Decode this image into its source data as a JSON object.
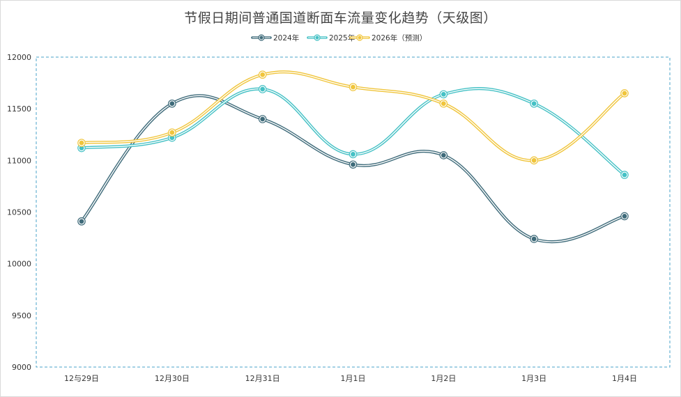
{
  "chart_data": {
    "type": "line",
    "title": "节假日期间普通国道断面车流量变化趋势（天级图）",
    "xlabel": "",
    "ylabel": "",
    "categories": [
      "12与29日",
      "12月30日",
      "12月31日",
      "1月1日",
      "1月2日",
      "1月3日",
      "1月4日"
    ],
    "ylim": [
      9000,
      12000
    ],
    "yticks": [
      9000,
      9500,
      10000,
      10500,
      11000,
      11500,
      12000
    ],
    "smooth": true,
    "grid": false,
    "legend_position": "top-center",
    "series": [
      {
        "name": "2024年",
        "color": "#3f6b7a",
        "values": [
          10410,
          11550,
          11400,
          10960,
          11050,
          10240,
          10460
        ]
      },
      {
        "name": "2025年",
        "color": "#45c1c5",
        "values": [
          11120,
          11220,
          11690,
          11060,
          11640,
          11550,
          10860
        ]
      },
      {
        "name": "2026年（预测）",
        "color": "#f0c53c",
        "values": [
          11170,
          11270,
          11830,
          11710,
          11550,
          11000,
          11650
        ]
      }
    ]
  }
}
